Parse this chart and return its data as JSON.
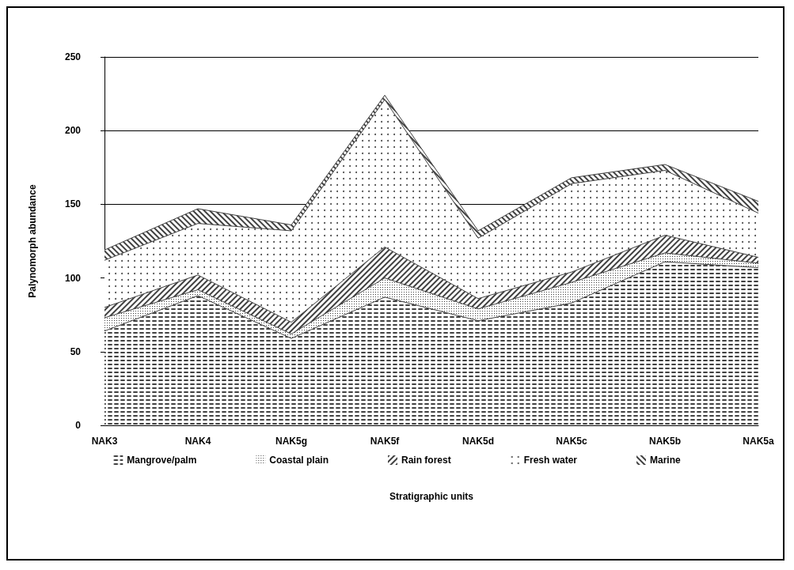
{
  "chart_data": {
    "type": "area",
    "stacked": true,
    "xlabel": "Stratigraphic units",
    "ylabel": "Palynomorph abundance",
    "categories": [
      "NAK3",
      "NAK4",
      "NAK5g",
      "NAK5f",
      "NAK5d",
      "NAK5c",
      "NAK5b",
      "NAK5a"
    ],
    "series": [
      {
        "name": "Mangrove/palm",
        "color": "#404040",
        "values": [
          64,
          88,
          59,
          87,
          71,
          83,
          111,
          107
        ]
      },
      {
        "name": "Coastal plain",
        "color": "#404040",
        "values": [
          9,
          4,
          3,
          13,
          8,
          14,
          6,
          3
        ]
      },
      {
        "name": "Rain forest",
        "color": "#404040",
        "values": [
          7,
          10,
          8,
          21,
          7,
          7,
          12,
          4
        ]
      },
      {
        "name": "Fresh water",
        "color": "#404040",
        "values": [
          32,
          35,
          62,
          100,
          41,
          60,
          44,
          30
        ]
      },
      {
        "name": "Marine",
        "color": "#404040",
        "values": [
          7,
          10,
          4,
          3,
          5,
          4,
          4,
          8
        ]
      }
    ],
    "ylim": [
      0,
      250
    ],
    "yticks": [
      0,
      50,
      100,
      150,
      200,
      250
    ],
    "grid": "y",
    "legend": "bottom"
  }
}
